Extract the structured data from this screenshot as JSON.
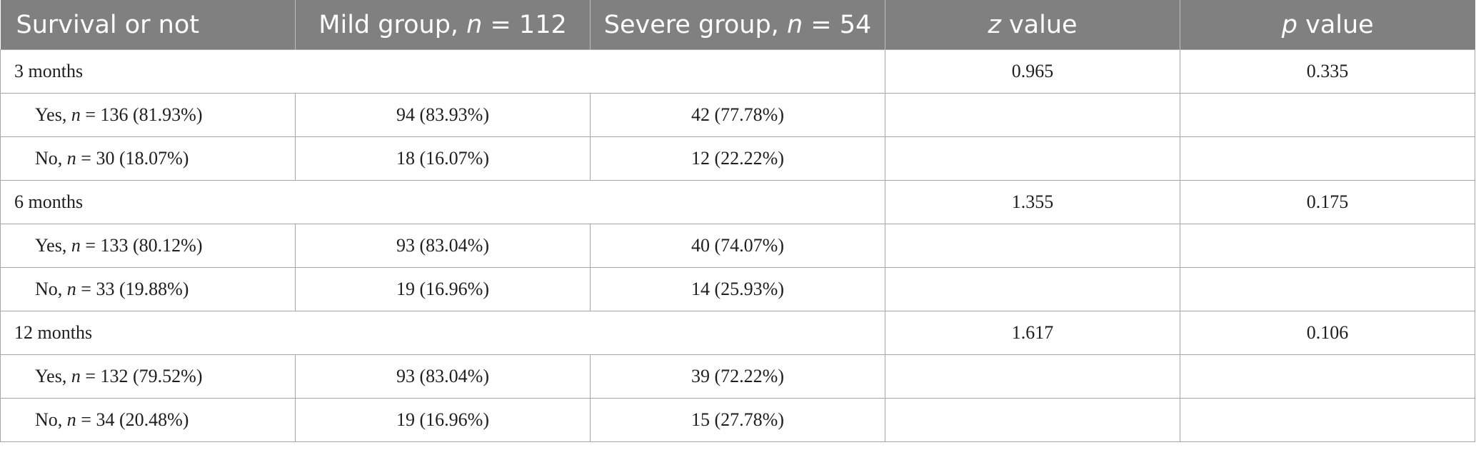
{
  "header": {
    "col0": "Survival or not",
    "col1_pre": "Mild group, ",
    "col1_var": "n",
    "col1_post": " = 112",
    "col2_pre": "Severe group, ",
    "col2_var": "n",
    "col2_post": " = 54",
    "col3_var": "z",
    "col3_post": " value",
    "col4_var": "p",
    "col4_post": " value"
  },
  "groups": [
    {
      "label": "3 months",
      "z": "0.965",
      "p": "0.335",
      "rows": [
        {
          "pre": "Yes, ",
          "var": "n",
          "post": " = 136 (81.93%)",
          "mild": "94 (83.93%)",
          "severe": "42 (77.78%)"
        },
        {
          "pre": "No, ",
          "var": "n",
          "post": " = 30 (18.07%)",
          "mild": "18 (16.07%)",
          "severe": "12 (22.22%)"
        }
      ]
    },
    {
      "label": "6 months",
      "z": "1.355",
      "p": "0.175",
      "rows": [
        {
          "pre": "Yes, ",
          "var": "n",
          "post": " = 133 (80.12%)",
          "mild": "93 (83.04%)",
          "severe": "40 (74.07%)"
        },
        {
          "pre": "No, ",
          "var": "n",
          "post": " = 33 (19.88%)",
          "mild": "19 (16.96%)",
          "severe": "14 (25.93%)"
        }
      ]
    },
    {
      "label": "12 months",
      "z": "1.617",
      "p": "0.106",
      "rows": [
        {
          "pre": "Yes, ",
          "var": "n",
          "post": " = 132 (79.52%)",
          "mild": "93 (83.04%)",
          "severe": "39 (72.22%)"
        },
        {
          "pre": "No, ",
          "var": "n",
          "post": " = 34 (20.48%)",
          "mild": "19 (16.96%)",
          "severe": "15 (27.78%)"
        }
      ]
    }
  ]
}
